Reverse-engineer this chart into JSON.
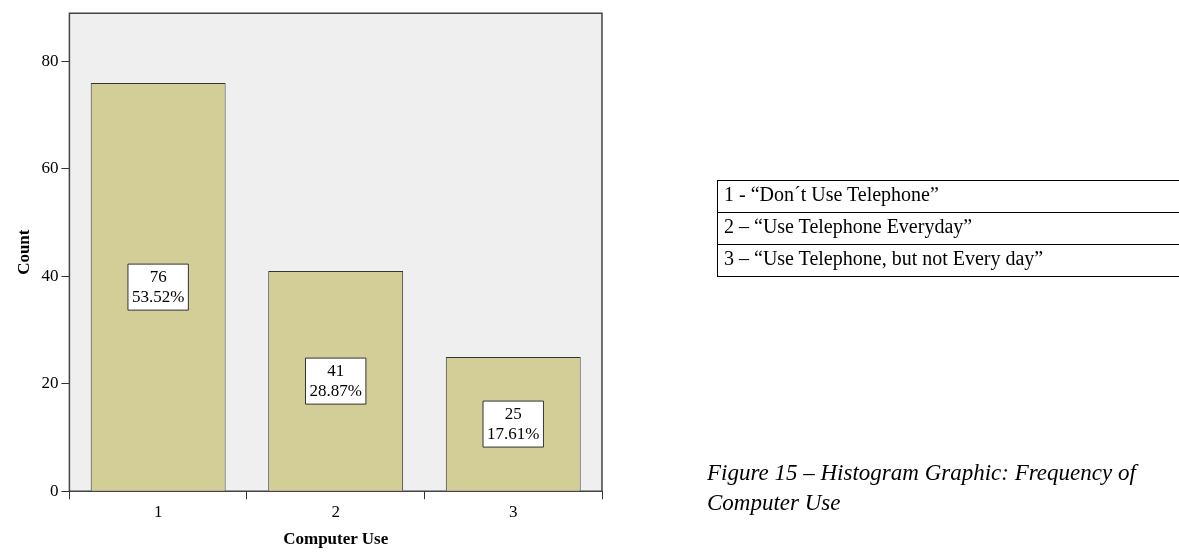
{
  "chart_data": {
    "type": "bar",
    "xlabel": "Computer Use",
    "ylabel": "Count",
    "categories": [
      "1",
      "2",
      "3"
    ],
    "values": [
      76,
      41,
      25
    ],
    "color": "#d3ce97",
    "value_labels": [
      "76\n53.52%",
      "41\n28.87%",
      "25\n17.61%"
    ],
    "ylim": [
      0,
      89
    ],
    "yticks": [
      0,
      20,
      40,
      60,
      80
    ],
    "grid": false,
    "legend": false,
    "annotations": [
      "1 - “Don´t Use Telephone”",
      "2 – “Use Telephone Everyday”",
      "3 – “Use Telephone, but not Every day”",
      "Figure 15 – Histogram Graphic: Frequency of Computer Use"
    ]
  }
}
